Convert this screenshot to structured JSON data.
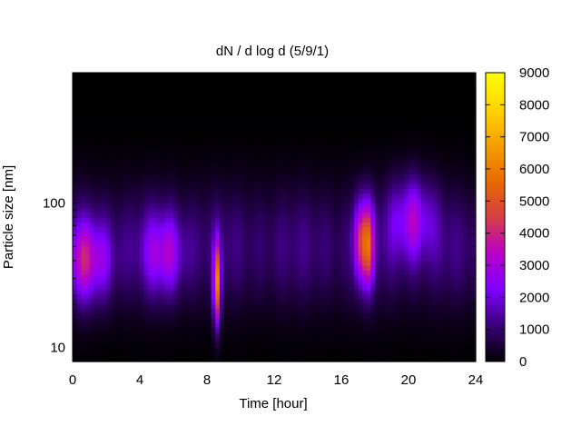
{
  "chart_data": {
    "type": "heatmap",
    "title": "dN / d log d (5/9/1)",
    "xlabel": "Time [hour]",
    "ylabel": "Particle size [nm]",
    "xlim": [
      0,
      24
    ],
    "ylim": [
      8,
      800
    ],
    "y_scale": "log",
    "x_ticks": [
      0,
      4,
      8,
      12,
      16,
      20,
      24
    ],
    "x_tick_labels": [
      "0",
      "4",
      "8",
      "12",
      "16",
      "20",
      "24"
    ],
    "y_ticks": [
      10,
      100
    ],
    "y_tick_labels": [
      "10",
      "100"
    ],
    "colorbar": {
      "range": [
        0,
        9000
      ],
      "ticks": [
        0,
        1000,
        2000,
        3000,
        4000,
        5000,
        6000,
        7000,
        8000,
        9000
      ],
      "tick_labels": [
        "0",
        "1000",
        "2000",
        "3000",
        "4000",
        "5000",
        "6000",
        "7000",
        "8000",
        "9000"
      ],
      "colormap": "gnuplot",
      "colors": [
        "#000000",
        "#3a007a",
        "#7f00ff",
        "#b800c8",
        "#d53f45",
        "#e86a00",
        "#f5a000",
        "#ffd400",
        "#ffff00"
      ]
    },
    "grid": false,
    "features": [
      {
        "time_center": 1.0,
        "time_width": 1.3,
        "size_center_nm": 40,
        "peak": 3300
      },
      {
        "time_center": 5.5,
        "time_width": 1.2,
        "size_center_nm": 45,
        "peak": 2600
      },
      {
        "time_center": 8.6,
        "time_width": 0.22,
        "size_center_nm": 28,
        "peak": 5500
      },
      {
        "time_center": 17.1,
        "time_width": 0.35,
        "size_center_nm": 55,
        "peak": 4200
      },
      {
        "time_center": 17.6,
        "time_width": 0.35,
        "size_center_nm": 52,
        "peak": 4300
      },
      {
        "time_center": 20.2,
        "time_width": 1.2,
        "size_center_nm": 80,
        "peak": 3200
      }
    ]
  }
}
